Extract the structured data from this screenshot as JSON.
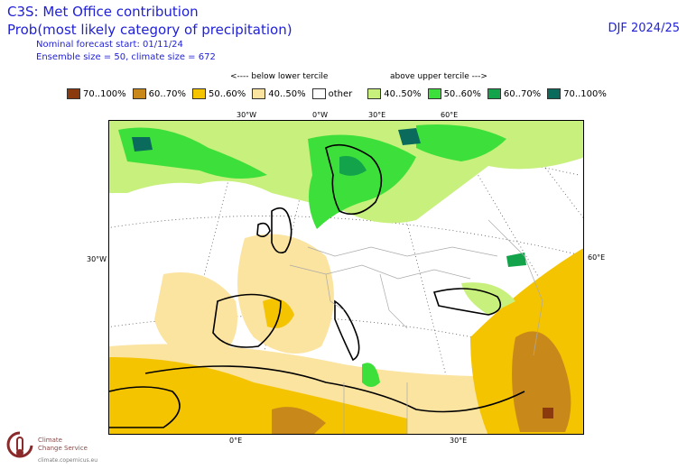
{
  "header": {
    "title": "C3S: Met Office contribution",
    "subtitle": "Prob(most likely category of precipitation)",
    "forecast_start": "Nominal forecast start: 01/11/24",
    "ensemble": "Ensemble size = 50, climate size = 672",
    "season": "DJF 2024/25"
  },
  "tercile_notes": {
    "below": "<---- below lower tercile",
    "above": "above upper tercile --->"
  },
  "legend": [
    {
      "label": "70..100%",
      "color": "#8b3a0e"
    },
    {
      "label": "60..70%",
      "color": "#c9891a"
    },
    {
      "label": "50..60%",
      "color": "#f5c400"
    },
    {
      "label": "40..50%",
      "color": "#fbe3a0"
    },
    {
      "label": "other",
      "color": "#ffffff"
    },
    {
      "label": "40..50%",
      "color": "#c8f07c"
    },
    {
      "label": "50..60%",
      "color": "#3de03a"
    },
    {
      "label": "60..70%",
      "color": "#13a34a"
    },
    {
      "label": "70..100%",
      "color": "#0a6b5c"
    }
  ],
  "axis_labels": {
    "top": [
      "30°W",
      "0°W",
      "30°E",
      "60°E"
    ],
    "left": "30°W",
    "right": "60°E",
    "bottom": [
      "0°E",
      "30°E"
    ]
  },
  "logo": {
    "line1": "Climate",
    "line2": "Change Service",
    "url": "climate.copernicus.eu"
  }
}
